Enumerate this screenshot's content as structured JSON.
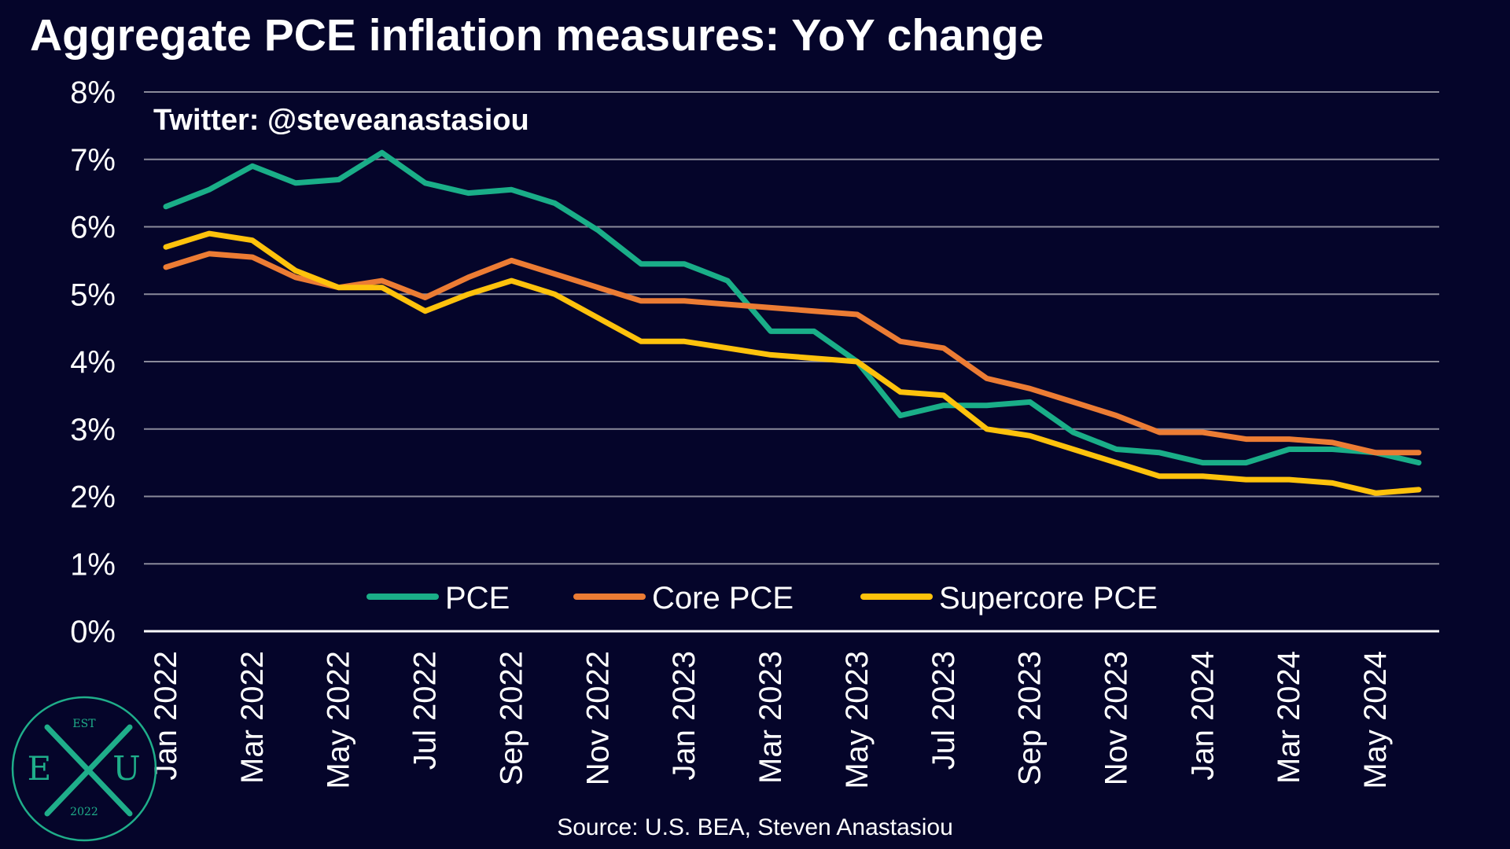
{
  "title": "Aggregate PCE inflation measures: YoY change",
  "handle": "Twitter: @steveanastasiou",
  "source": "Source: U.S. BEA, Steven Anastasiou",
  "logo": {
    "top_text": "EST",
    "left_letter": "E",
    "right_letter": "U",
    "bottom_text": "2022",
    "color": "#1fae8a"
  },
  "colors": {
    "background": "#05052a",
    "grid": "#8a8a9a",
    "text": "#ffffff"
  },
  "chart_data": {
    "type": "line",
    "title": "Aggregate PCE inflation measures: YoY change",
    "xlabel": "",
    "ylabel": "",
    "ylim": [
      0,
      8
    ],
    "y_ticks": [
      "0%",
      "1%",
      "2%",
      "3%",
      "4%",
      "5%",
      "6%",
      "7%",
      "8%"
    ],
    "grid": true,
    "legend_position": "bottom-center",
    "x": [
      "Jan 2022",
      "Feb 2022",
      "Mar 2022",
      "Apr 2022",
      "May 2022",
      "Jun 2022",
      "Jul 2022",
      "Aug 2022",
      "Sep 2022",
      "Oct 2022",
      "Nov 2022",
      "Dec 2022",
      "Jan 2023",
      "Feb 2023",
      "Mar 2023",
      "Apr 2023",
      "May 2023",
      "Jun 2023",
      "Jul 2023",
      "Aug 2023",
      "Sep 2023",
      "Oct 2023",
      "Nov 2023",
      "Dec 2023",
      "Jan 2024",
      "Feb 2024",
      "Mar 2024",
      "Apr 2024",
      "May 2024",
      "Jun 2024"
    ],
    "x_tick_labels": [
      "Jan 2022",
      "Mar 2022",
      "May 2022",
      "Jul 2022",
      "Sep 2022",
      "Nov 2022",
      "Jan 2023",
      "Mar 2023",
      "May 2023",
      "Jul 2023",
      "Sep 2023",
      "Nov 2023",
      "Jan 2024",
      "Mar 2024",
      "May 2024"
    ],
    "series": [
      {
        "name": "PCE",
        "color": "#1aae88",
        "values": [
          6.3,
          6.55,
          6.9,
          6.65,
          6.7,
          7.1,
          6.65,
          6.5,
          6.55,
          6.35,
          5.95,
          5.45,
          5.45,
          5.2,
          4.45,
          4.45,
          4.0,
          3.2,
          3.35,
          3.35,
          3.4,
          2.95,
          2.7,
          2.65,
          2.5,
          2.5,
          2.7,
          2.7,
          2.65,
          2.5
        ]
      },
      {
        "name": "Core PCE",
        "color": "#ec7c34",
        "values": [
          5.4,
          5.6,
          5.55,
          5.25,
          5.1,
          5.2,
          4.95,
          5.25,
          5.5,
          5.3,
          5.1,
          4.9,
          4.9,
          4.85,
          4.8,
          4.75,
          4.7,
          4.3,
          4.2,
          3.75,
          3.6,
          3.4,
          3.2,
          2.95,
          2.95,
          2.85,
          2.85,
          2.8,
          2.65,
          2.65
        ]
      },
      {
        "name": "Supercore PCE",
        "color": "#fec20c",
        "values": [
          5.7,
          5.9,
          5.8,
          5.35,
          5.1,
          5.1,
          4.75,
          5.0,
          5.2,
          5.0,
          4.65,
          4.3,
          4.3,
          4.2,
          4.1,
          4.05,
          4.0,
          3.55,
          3.5,
          3.0,
          2.9,
          2.7,
          2.5,
          2.3,
          2.3,
          2.25,
          2.25,
          2.2,
          2.05,
          2.1
        ]
      }
    ]
  }
}
